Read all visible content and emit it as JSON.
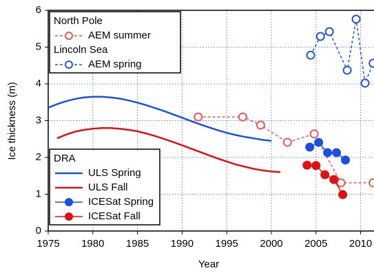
{
  "chart_data": {
    "type": "line",
    "x_label": "Year",
    "y_label": "Ice thickness (m)",
    "xlim": [
      1975,
      2011.5
    ],
    "xticks": [
      1975,
      1980,
      1985,
      1990,
      1995,
      2000,
      2005,
      2010
    ],
    "ylim": [
      0,
      6
    ],
    "yticks": [
      0,
      1,
      2,
      3,
      4,
      5,
      6
    ],
    "grid": true,
    "series": [
      {
        "name": "AEM summer",
        "group": "North Pole",
        "legend": "upper left",
        "color": "#f05555",
        "linestyle": "dashed",
        "marker": "open",
        "x": [
          1991.8,
          1996.8,
          1998.8,
          2001.8,
          2004.8,
          2007.8,
          2011.4
        ],
        "values": [
          3.1,
          3.1,
          2.88,
          2.41,
          2.64,
          1.31,
          1.31
        ]
      },
      {
        "name": "AEM spring",
        "group": "Lincoln Sea",
        "legend": "upper left",
        "color": "#2255dd",
        "linestyle": "dashed",
        "marker": "open",
        "x": [
          2004.4,
          2005.5,
          2006.5,
          2008.5,
          2009.5,
          2010.5,
          2011.4
        ],
        "values": [
          4.78,
          5.29,
          5.42,
          4.37,
          5.76,
          4.02,
          4.56
        ]
      },
      {
        "name": "ULS Spring",
        "group": "DRA",
        "legend": "lower left",
        "color": "#1a4fe0",
        "linestyle": "solid",
        "marker": null,
        "x": [
          1975,
          1976,
          1977,
          1978,
          1979,
          1980,
          1981,
          1982,
          1983,
          1984,
          1985,
          1986,
          1987,
          1988,
          1989,
          1990,
          1991,
          1992,
          1993,
          1994,
          1995,
          1996,
          1997,
          1998,
          1999,
          2000
        ],
        "values": [
          3.35,
          3.45,
          3.53,
          3.59,
          3.63,
          3.65,
          3.65,
          3.63,
          3.6,
          3.55,
          3.49,
          3.42,
          3.34,
          3.26,
          3.17,
          3.08,
          2.99,
          2.9,
          2.82,
          2.74,
          2.67,
          2.61,
          2.56,
          2.52,
          2.48,
          2.45
        ]
      },
      {
        "name": "ULS Fall",
        "group": "DRA",
        "legend": "lower left",
        "color": "#e01010",
        "linestyle": "solid",
        "marker": null,
        "x": [
          1976,
          1977,
          1978,
          1979,
          1980,
          1981,
          1982,
          1983,
          1984,
          1985,
          1986,
          1987,
          1988,
          1989,
          1990,
          1991,
          1992,
          1993,
          1994,
          1995,
          1996,
          1997,
          1998,
          1999,
          2000,
          2001
        ],
        "values": [
          2.52,
          2.62,
          2.7,
          2.75,
          2.78,
          2.8,
          2.8,
          2.78,
          2.75,
          2.71,
          2.65,
          2.58,
          2.5,
          2.42,
          2.33,
          2.24,
          2.15,
          2.06,
          1.97,
          1.89,
          1.81,
          1.75,
          1.69,
          1.65,
          1.62,
          1.6
        ]
      },
      {
        "name": "ICESat Spring",
        "group": "DRA",
        "legend": "lower left",
        "color": "#1a4fe0",
        "linestyle": "solid",
        "marker": "filled",
        "x": [
          2004.3,
          2005.3,
          2006.3,
          2007.3,
          2008.3
        ],
        "values": [
          2.28,
          2.41,
          2.13,
          2.13,
          1.93
        ]
      },
      {
        "name": "ICESat Fall",
        "group": "DRA",
        "legend": "lower left",
        "color": "#e01010",
        "linestyle": "solid",
        "marker": "filled",
        "x": [
          2004,
          2005,
          2006,
          2007,
          2008
        ],
        "values": [
          1.79,
          1.78,
          1.53,
          1.4,
          0.99
        ]
      }
    ]
  }
}
